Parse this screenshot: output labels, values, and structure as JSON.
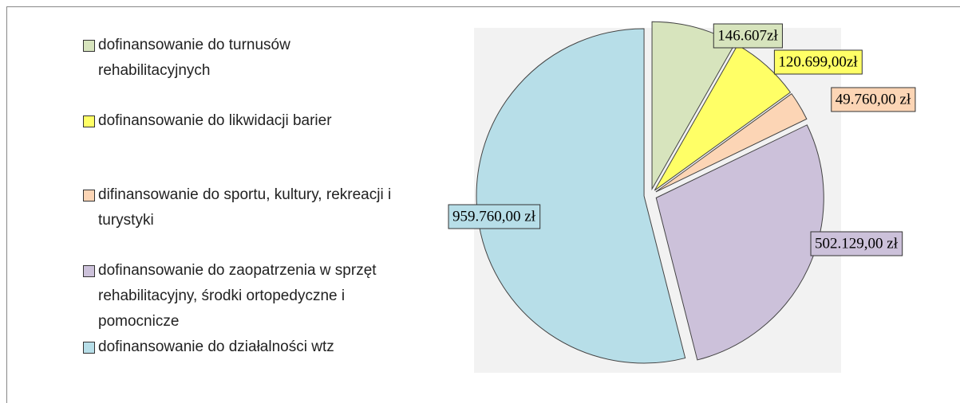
{
  "chart_data": {
    "type": "pie",
    "categories": [
      "dofinansowanie do turnusów rehabilitacyjnych",
      "dofinansowanie do likwidacji barier",
      "difinansowanie do sportu, kultury, rekreacji i turystyki",
      "dofinansowanie do zaopatrzenia w sprzęt rehabilitacyjny, środki ortopedyczne i pomocnicze",
      "dofinansowanie do działalności wtz"
    ],
    "values": [
      146607,
      120699,
      49760,
      502129,
      959760
    ],
    "value_labels": [
      "146.607zł",
      "120.699,00zł",
      "49.760,00 zł",
      "502.129,00 zł",
      "959.760,00 zł"
    ],
    "colors": [
      "#d7e4bd",
      "#ffff66",
      "#fcd5b5",
      "#ccc1da",
      "#b7dee8"
    ],
    "legend": "left"
  }
}
